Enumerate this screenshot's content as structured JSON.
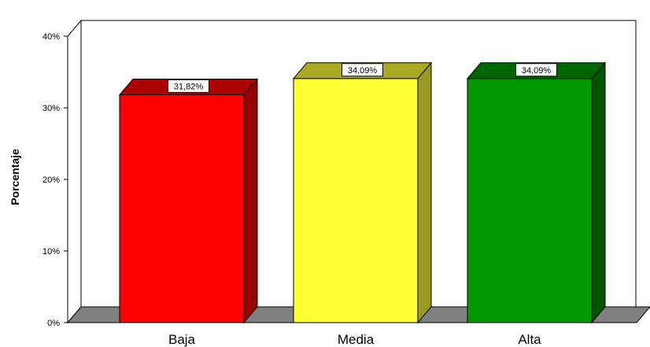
{
  "chart_data": {
    "type": "bar",
    "style": "3d",
    "title": "",
    "xlabel": "",
    "ylabel": "Porcentaje",
    "categories": [
      "Baja",
      "Media",
      "Alta"
    ],
    "values": [
      31.82,
      34.09,
      34.09
    ],
    "data_labels": [
      "31,82%",
      "34,09%",
      "34,09%"
    ],
    "ylim": [
      0,
      40
    ],
    "yticks": [
      0,
      10,
      20,
      30,
      40
    ],
    "ytick_labels": [
      "0%",
      "10%",
      "20%",
      "30%",
      "40%"
    ],
    "grid": false,
    "legend": "none",
    "colors": {
      "bar_front": [
        "#ff0000",
        "#ffff33",
        "#009900"
      ],
      "bar_side": [
        "#990000",
        "#999922",
        "#005500"
      ],
      "bar_top": [
        "#aa0000",
        "#aaaa22",
        "#006600"
      ],
      "floor": "#808080"
    }
  }
}
